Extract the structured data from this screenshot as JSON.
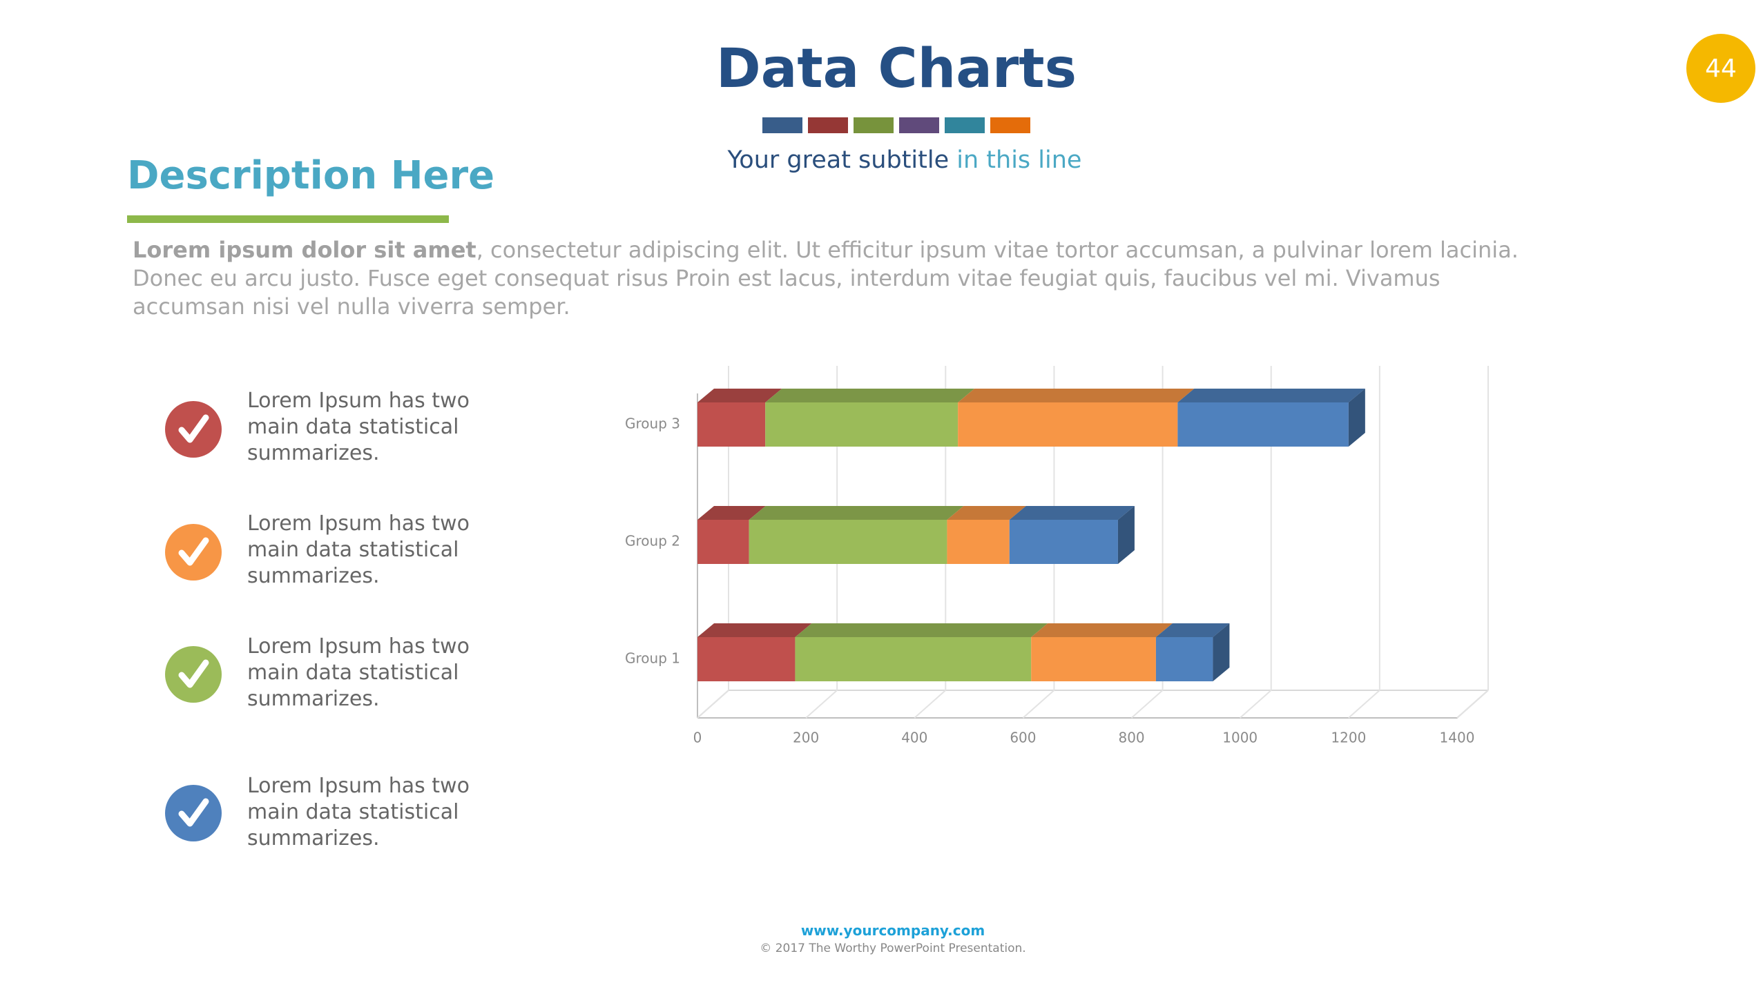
{
  "header": {
    "title": "Data Charts",
    "subtitle_main": "Your great subtitle",
    "subtitle_accent": "in this line",
    "page_number": "44"
  },
  "description": {
    "heading": "Description Here",
    "lead": "Lorem ipsum dolor sit amet",
    "body": ", consectetur adipiscing elit. Ut efficitur ipsum vitae tortor accumsan, a pulvinar lorem lacinia. Donec eu arcu justo. Fusce eget consequat risus Proin est lacus, interdum vitae feugiat quis, faucibus vel mi.  Vivamus accumsan nisi vel nulla viverra semper."
  },
  "checklist": [
    "Lorem Ipsum has two main data statistical summarizes.",
    "Lorem Ipsum has two main data statistical summarizes.",
    "Lorem Ipsum has two main data statistical summarizes.",
    "Lorem Ipsum has two main data statistical summarizes."
  ],
  "footer": {
    "url": "www.yourcompany.com",
    "copyright": "© 2017 The Worthy PowerPoint Presentation."
  },
  "chart_data": {
    "type": "bar",
    "orientation": "horizontal",
    "stacked": true,
    "categories": [
      "Group 1",
      "Group 2",
      "Group 3"
    ],
    "series": [
      {
        "color": "#c0504d",
        "values": [
          180,
          95,
          125
        ]
      },
      {
        "color": "#9bbb59",
        "values": [
          435,
          365,
          355
        ]
      },
      {
        "color": "#f79646",
        "values": [
          230,
          115,
          405
        ]
      },
      {
        "color": "#4f81bd",
        "values": [
          105,
          200,
          315
        ]
      }
    ],
    "xlim": [
      0,
      1400
    ],
    "xticks": [
      0,
      200,
      400,
      600,
      800,
      1000,
      1200,
      1400
    ],
    "grid": true
  }
}
